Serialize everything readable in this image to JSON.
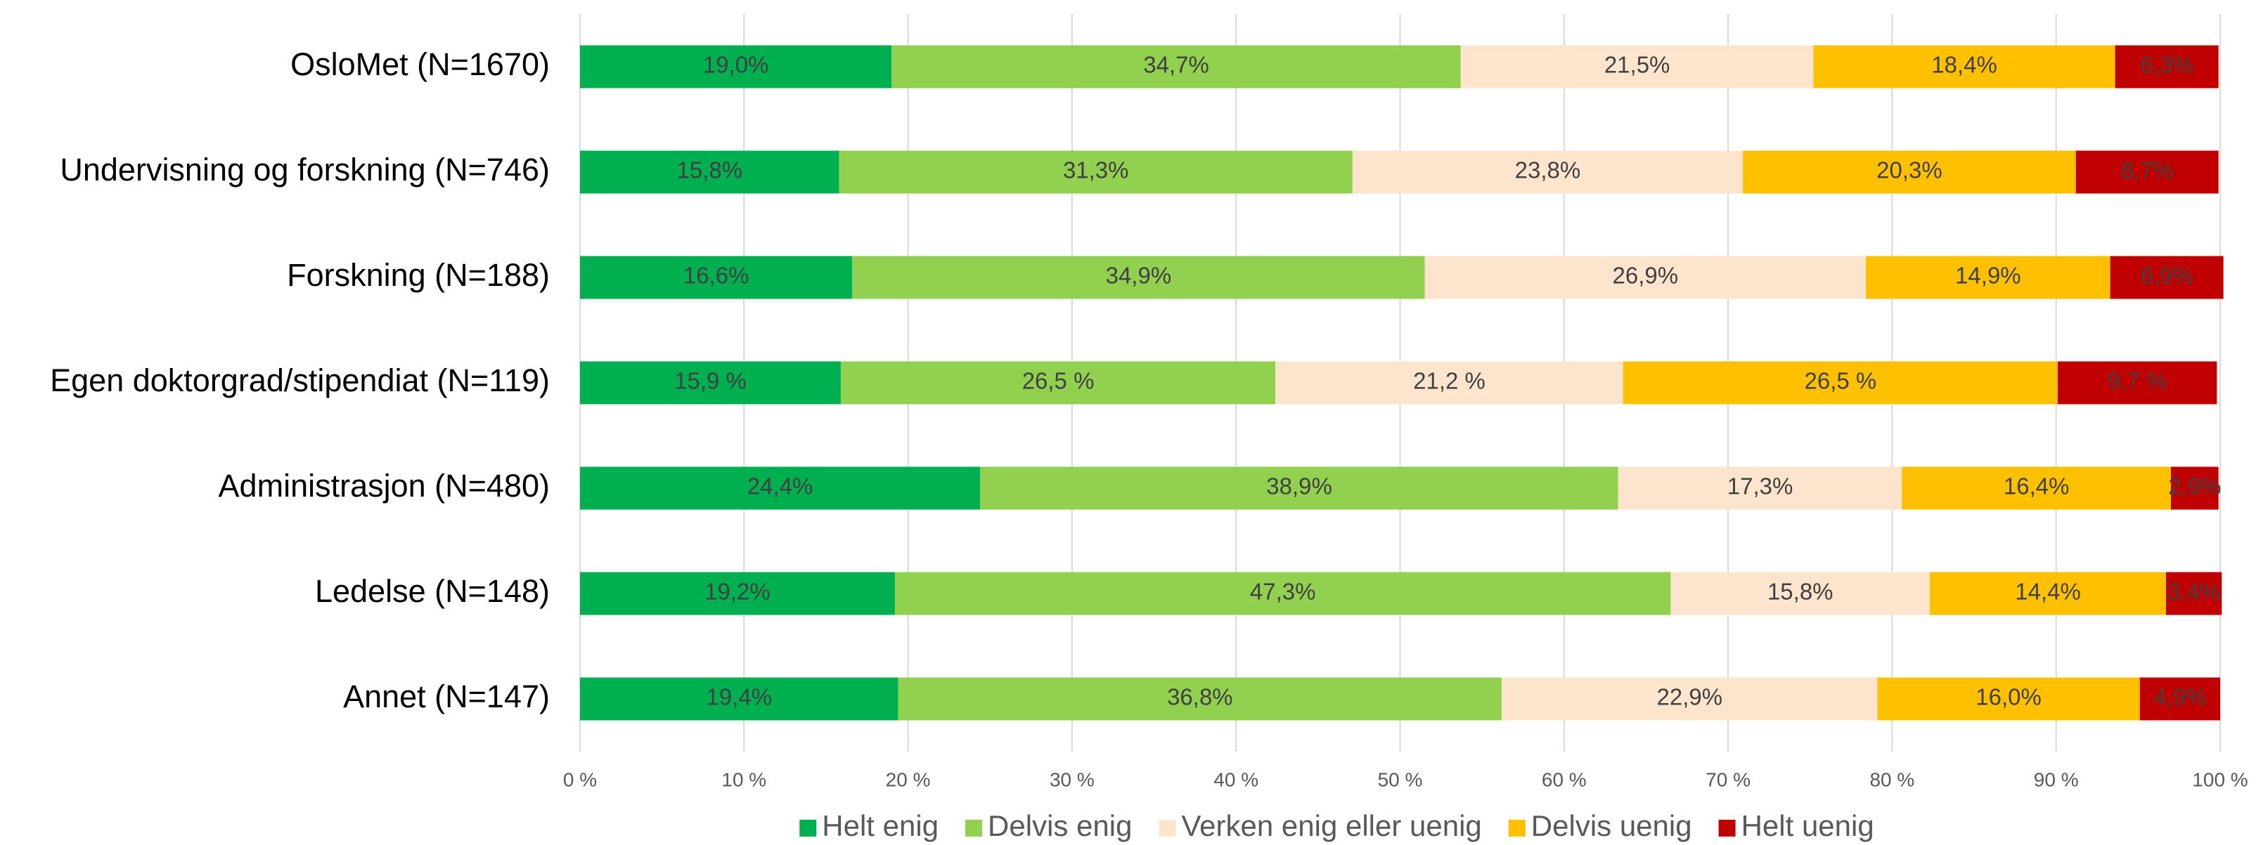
{
  "chart_data": {
    "type": "stacked-barh",
    "categories": [
      "OsloMet (N=1670)",
      "Undervisning og forskning (N=746)",
      "Forskning (N=188)",
      "Egen doktorgrad/stipendiat (N=119)",
      "Administrasjon (N=480)",
      "Ledelse (N=148)",
      "Annet (N=147)"
    ],
    "series": [
      {
        "name": "Helt enig",
        "color": "#00b050",
        "values": [
          19.0,
          15.8,
          16.6,
          15.9,
          24.4,
          19.2,
          19.4
        ],
        "value_labels": [
          "19,0%",
          "15,8%",
          "16,6%",
          "15,9 %",
          "24,4%",
          "19,2%",
          "19,4%"
        ]
      },
      {
        "name": "Delvis enig",
        "color": "#92d050",
        "values": [
          34.7,
          31.3,
          34.9,
          26.5,
          38.9,
          47.3,
          36.8
        ],
        "value_labels": [
          "34,7%",
          "31,3%",
          "34,9%",
          "26,5 %",
          "38,9%",
          "47,3%",
          "36,8%"
        ]
      },
      {
        "name": "Verken enig eller uenig",
        "color": "#fde4cc",
        "values": [
          21.5,
          23.8,
          26.9,
          21.2,
          17.3,
          15.8,
          22.9
        ],
        "value_labels": [
          "21,5%",
          "23,8%",
          "26,9%",
          "21,2 %",
          "17,3%",
          "15,8%",
          "22,9%"
        ]
      },
      {
        "name": "Delvis uenig",
        "color": "#ffc000",
        "values": [
          18.4,
          20.3,
          14.9,
          26.5,
          16.4,
          14.4,
          16.0
        ],
        "value_labels": [
          "18,4%",
          "20,3%",
          "14,9%",
          "26,5 %",
          "16,4%",
          "14,4%",
          "16,0%"
        ]
      },
      {
        "name": "Helt uenig",
        "color": "#c00000",
        "values": [
          6.3,
          8.7,
          6.9,
          9.7,
          2.9,
          3.4,
          4.9
        ],
        "value_labels": [
          "6,3%",
          "8,7%",
          "6,9%",
          "9,7 %",
          "2,9%",
          "3,4%",
          "4,9%"
        ]
      }
    ],
    "xlim": [
      0,
      100
    ],
    "xticks": [
      {
        "value": 0,
        "label": "0 %"
      },
      {
        "value": 10,
        "label": "10 %"
      },
      {
        "value": 20,
        "label": "20 %"
      },
      {
        "value": 30,
        "label": "30 %"
      },
      {
        "value": 40,
        "label": "40 %"
      },
      {
        "value": 50,
        "label": "50 %"
      },
      {
        "value": 60,
        "label": "60 %"
      },
      {
        "value": 70,
        "label": "70 %"
      },
      {
        "value": 80,
        "label": "80 %"
      },
      {
        "value": 90,
        "label": "90 %"
      },
      {
        "value": 100,
        "label": "100 %"
      }
    ],
    "grid": true,
    "legend": "bottom"
  }
}
